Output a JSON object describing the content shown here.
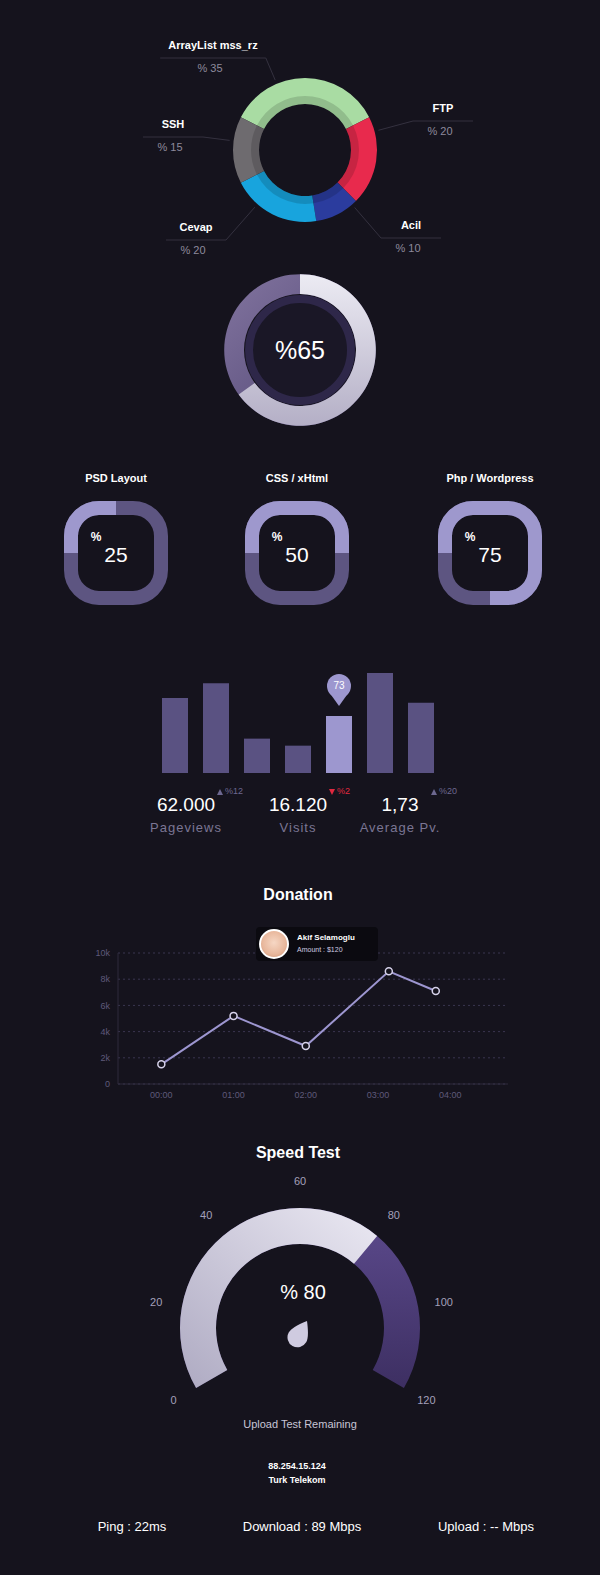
{
  "chart_data": [
    {
      "type": "pie",
      "categories": [
        "ArrayList mss_rz",
        "FTP",
        "Acil",
        "Cevap",
        "SSH"
      ],
      "values": [
        35,
        20,
        10,
        20,
        15
      ],
      "value_labels": [
        "% 35",
        "% 20",
        "% 10",
        "% 20",
        "% 15"
      ],
      "colors": [
        "#a9dca3",
        "#e82a4d",
        "#2b3c9e",
        "#18a4dd",
        "#6e6b6f"
      ],
      "data_labels": true
    },
    {
      "type": "gauge",
      "values": [
        65
      ],
      "value_labels": [
        "%65"
      ],
      "ylim": [
        0,
        100
      ]
    },
    {
      "type": "progress",
      "categories": [
        "PSD Layout",
        "CSS / xHtml",
        "Php / Wordpress"
      ],
      "values": [
        25,
        50,
        75
      ],
      "value_labels": [
        "% 25",
        "% 50",
        "% 75"
      ],
      "ylim": [
        0,
        100
      ]
    },
    {
      "type": "bar",
      "categories": [
        null,
        null,
        null,
        null,
        null,
        null,
        null
      ],
      "values": [
        96,
        115,
        44,
        35,
        73,
        128,
        90
      ],
      "value_labels": [
        null,
        null,
        null,
        null,
        "73",
        null,
        null
      ],
      "colors": [
        "#5a5282",
        "#5a5282",
        "#5a5282",
        "#5a5282",
        "#9d97cf",
        "#5a5282",
        "#5a5282"
      ],
      "data_labels": true,
      "tick_labels": false,
      "annotations": [
        {
          "value": "62.000",
          "label": "Pageviews",
          "change": "%12",
          "direction": "up"
        },
        {
          "value": "16.120",
          "label": "Visits",
          "change": "%2",
          "direction": "down"
        },
        {
          "value": "1,73",
          "label": "Average Pv.",
          "change": "%20",
          "direction": "up"
        }
      ]
    },
    {
      "type": "line",
      "title": "Donation",
      "x": [
        0,
        1,
        2,
        3.15,
        3.8
      ],
      "values": [
        1500,
        5200,
        2900,
        8600,
        7100
      ],
      "xlim": [
        -0.6,
        4.8
      ],
      "xticks": [
        {
          "value": 0,
          "label": "00:00"
        },
        {
          "value": 1,
          "label": "01:00"
        },
        {
          "value": 2,
          "label": "02:00"
        },
        {
          "value": 3,
          "label": "03:00"
        },
        {
          "value": 4,
          "label": "04:00"
        }
      ],
      "ylim": [
        0,
        10000
      ],
      "yticks": [
        0,
        {
          "value": 2000,
          "label": "2k"
        },
        {
          "value": 4000,
          "label": "4k"
        },
        {
          "value": 6000,
          "label": "6k"
        },
        {
          "value": 8000,
          "label": "8k"
        },
        {
          "value": 10000,
          "label": "10k"
        }
      ],
      "grid": true,
      "color": "#9d96d0",
      "marker": "circle",
      "annotations": [
        {
          "name": "Akif Selamoglu",
          "text": "Amount : $120"
        }
      ]
    },
    {
      "type": "gauge",
      "title": "Speed Test",
      "subtitle": "Upload Test Remaining",
      "values": [
        80
      ],
      "value_labels": [
        "% 80"
      ],
      "ylim": [
        0,
        120
      ],
      "yticks": [
        0,
        20,
        40,
        60,
        80,
        100,
        120
      ],
      "annotations": [
        "88.254.15.124",
        "Turk Telekom",
        "Ping : 22ms",
        "Download : 89 Mbps",
        "Upload : -- Mbps"
      ]
    }
  ]
}
